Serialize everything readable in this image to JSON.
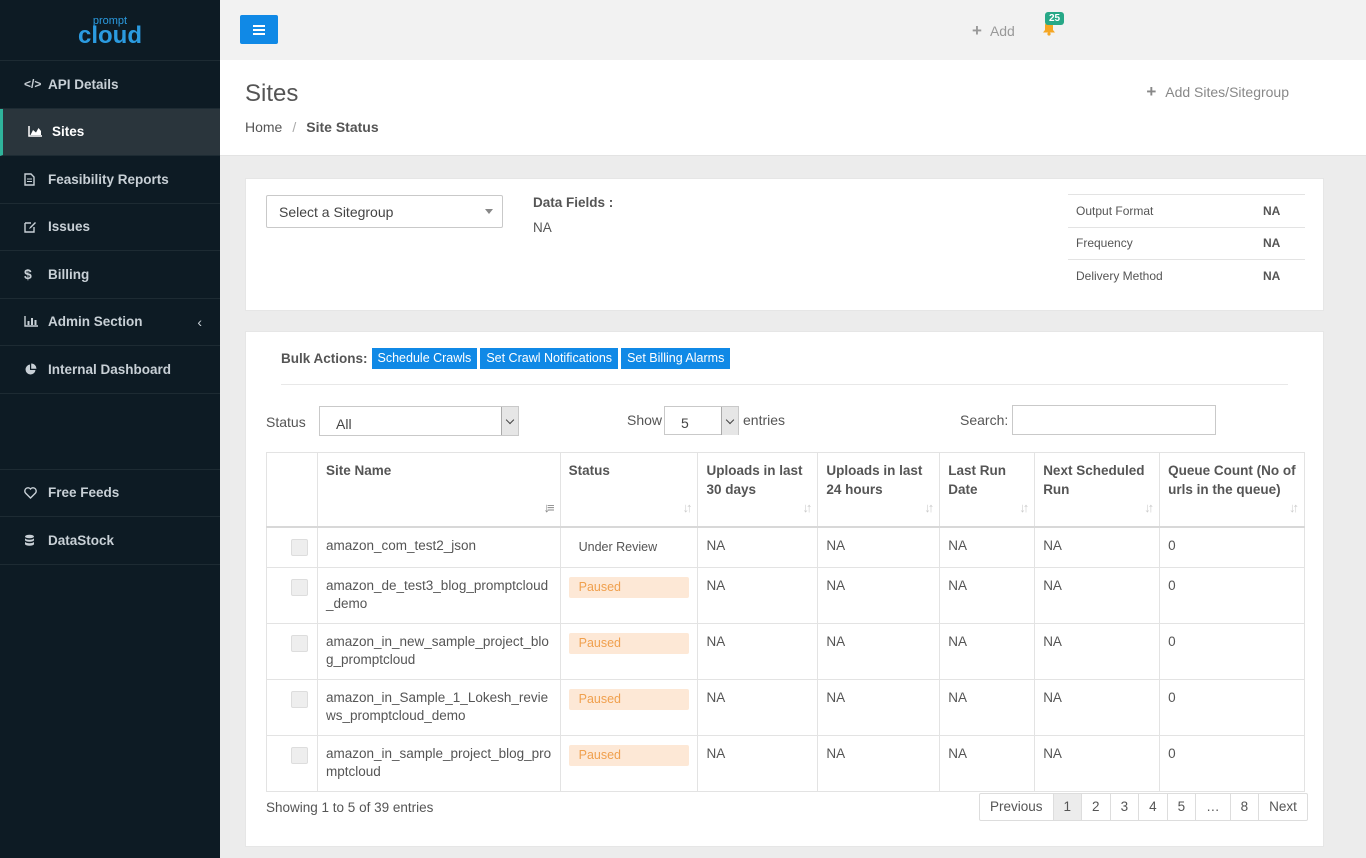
{
  "brand": {
    "logo_top": "prompt",
    "logo_bottom": "cloud"
  },
  "sidebar": {
    "items": [
      {
        "label": "API Details",
        "icon": "code-icon"
      },
      {
        "label": "Sites",
        "icon": "area-chart-icon",
        "active": true
      },
      {
        "label": "Feasibility Reports",
        "icon": "file-icon"
      },
      {
        "label": "Issues",
        "icon": "edit-icon"
      },
      {
        "label": "Billing",
        "icon": "dollar-icon"
      },
      {
        "label": "Admin Section",
        "icon": "bar-chart-icon"
      },
      {
        "label": "Internal Dashboard",
        "icon": "pie-chart-icon"
      }
    ],
    "bottom_items": [
      {
        "label": "Free Feeds",
        "icon": "heart-icon"
      },
      {
        "label": "DataStock",
        "icon": "database-icon"
      }
    ]
  },
  "topbar": {
    "add_label": "Add",
    "notification_count": "25"
  },
  "header": {
    "title": "Sites",
    "breadcrumb": {
      "home": "Home",
      "separator": "/",
      "current": "Site Status"
    },
    "add_sites_label": "Add Sites/Sitegroup"
  },
  "filters": {
    "sitegroup_placeholder": "Select a Sitegroup",
    "data_fields_label": "Data Fields :",
    "data_fields_value": "NA",
    "info": [
      {
        "label": "Output Format",
        "value": "NA"
      },
      {
        "label": "Frequency",
        "value": "NA"
      },
      {
        "label": "Delivery Method",
        "value": "NA"
      }
    ]
  },
  "bulk": {
    "label": "Bulk Actions:",
    "actions": [
      "Schedule Crawls",
      "Set Crawl Notifications",
      "Set Billing Alarms"
    ]
  },
  "table_controls": {
    "status_label": "Status",
    "status_value": "All",
    "show_label": "Show",
    "show_value": "5",
    "entries_label": "entries",
    "search_label": "Search:",
    "search_value": ""
  },
  "table": {
    "headers": [
      "Site Name",
      "Status",
      "Uploads in last 30 days",
      "Uploads in last 24 hours",
      "Last Run Date",
      "Next Scheduled Run",
      "Queue Count (No of urls in the queue)"
    ],
    "rows": [
      {
        "site": "amazon_com_test2_json",
        "status": "Under Review",
        "status_style": "plain",
        "uploads30": "NA",
        "uploads24": "NA",
        "last_run": "NA",
        "next_run": "NA",
        "queue": "0"
      },
      {
        "site": "amazon_de_test3_blog_promptcloud_demo",
        "status": "Paused",
        "status_style": "badge",
        "uploads30": "NA",
        "uploads24": "NA",
        "last_run": "NA",
        "next_run": "NA",
        "queue": "0"
      },
      {
        "site": "amazon_in_new_sample_project_blog_promptcloud",
        "status": "Paused",
        "status_style": "badge",
        "uploads30": "NA",
        "uploads24": "NA",
        "last_run": "NA",
        "next_run": "NA",
        "queue": "0"
      },
      {
        "site": "amazon_in_Sample_1_Lokesh_reviews_promptcloud_demo",
        "status": "Paused",
        "status_style": "badge",
        "uploads30": "NA",
        "uploads24": "NA",
        "last_run": "NA",
        "next_run": "NA",
        "queue": "0"
      },
      {
        "site": "amazon_in_sample_project_blog_promptcloud",
        "status": "Paused",
        "status_style": "badge",
        "uploads30": "NA",
        "uploads24": "NA",
        "last_run": "NA",
        "next_run": "NA",
        "queue": "0"
      }
    ]
  },
  "footer": {
    "showing": "Showing 1 to 5 of 39 entries",
    "pager": [
      "Previous",
      "1",
      "2",
      "3",
      "4",
      "5",
      "…",
      "8",
      "Next"
    ],
    "active_page": "1"
  },
  "colors": {
    "sidebar_bg": "#0d1b24",
    "accent_blue": "#1089e6",
    "active_border": "#2fb39b",
    "badge_green": "#27a887",
    "paused_bg": "#fde8d6",
    "paused_text": "#f0a04e"
  }
}
